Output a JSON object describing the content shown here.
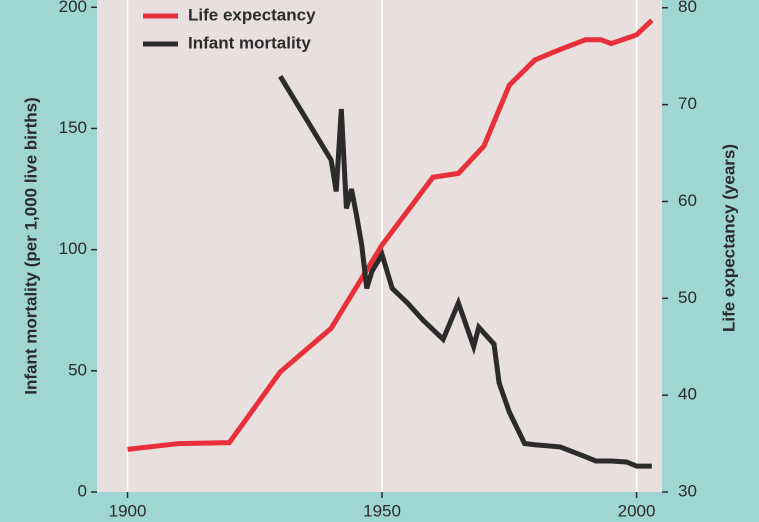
{
  "chart_data": {
    "type": "line",
    "ylabel": "Infant mortality (per 1,000 live births)",
    "y2label": "Life expectancy (years)",
    "xlim": [
      1894,
      2005
    ],
    "xticks": [
      1900,
      1950,
      2000
    ],
    "ylim": [
      0,
      203
    ],
    "yticks": [
      0,
      50,
      100,
      150,
      200
    ],
    "y2lim": [
      30,
      80.8
    ],
    "y2ticks": [
      30,
      40,
      50,
      60,
      70,
      80
    ],
    "grid": true,
    "legend": "upper left",
    "series": [
      {
        "name": "Life expectancy",
        "color": "#e8303a",
        "axis": "y2",
        "x": [
          1900,
          1910,
          1920,
          1930,
          1940,
          1950,
          1960,
          1965,
          1970,
          1975,
          1980,
          1985,
          1990,
          1993,
          1995,
          2000,
          2003
        ],
        "values": [
          34.4,
          35.0,
          35.1,
          42.4,
          46.9,
          55.5,
          62.5,
          62.9,
          65.7,
          72.0,
          74.6,
          75.7,
          76.7,
          76.7,
          76.3,
          77.2,
          78.7
        ]
      },
      {
        "name": "Infant mortality",
        "color": "#2b2b2b",
        "axis": "y",
        "x": [
          1930,
          1940,
          1941,
          1942,
          1943,
          1944,
          1945,
          1946,
          1947,
          1948,
          1950,
          1952,
          1955,
          1958,
          1962,
          1965,
          1967,
          1968,
          1969,
          1972,
          1973,
          1975,
          1978,
          1980,
          1985,
          1990,
          1992,
          1995,
          1998,
          2000,
          2003
        ],
        "values": [
          171.5,
          137,
          124,
          158,
          117,
          125,
          114,
          102,
          84,
          91,
          98,
          84,
          78,
          71,
          63,
          78,
          66,
          60,
          68,
          61,
          45,
          33,
          20,
          19.5,
          18.6,
          14.5,
          12.8,
          12.8,
          12.4,
          10.7,
          10.7
        ]
      }
    ]
  }
}
